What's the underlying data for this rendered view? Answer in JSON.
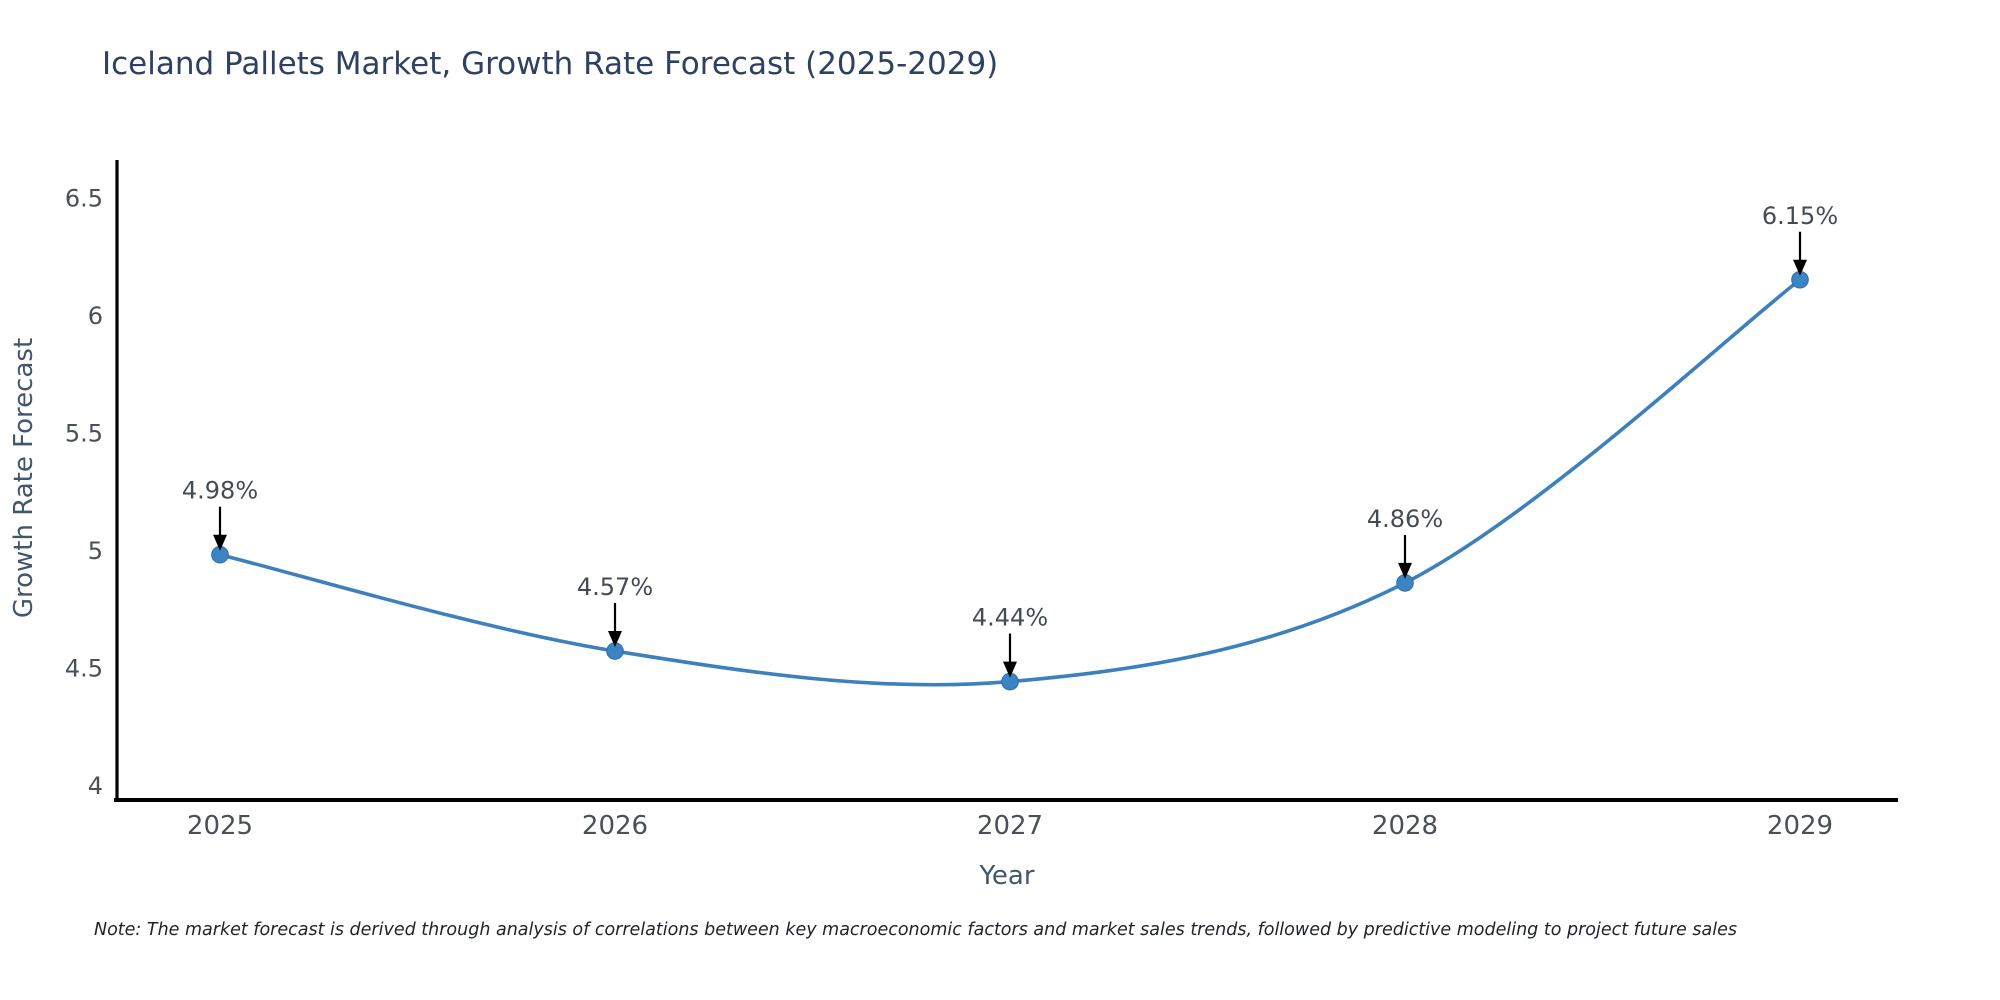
{
  "chart_data": {
    "type": "line",
    "title": "Iceland Pallets Market, Growth Rate Forecast (2025-2029)",
    "xlabel": "Year",
    "ylabel": "Growth Rate Forecast",
    "categories": [
      "2025",
      "2026",
      "2027",
      "2028",
      "2029"
    ],
    "series": [
      {
        "name": "Growth Rate Forecast",
        "values": [
          4.98,
          4.57,
          4.44,
          4.86,
          6.15
        ]
      }
    ],
    "point_labels": [
      "4.98%",
      "4.57%",
      "4.44%",
      "4.86%",
      "6.15%"
    ],
    "y_ticks": [
      4,
      4.5,
      5,
      5.5,
      6,
      6.5
    ],
    "ylim": [
      3.94,
      6.66
    ],
    "grid": false,
    "legend_position": "none",
    "line_shape": "spline",
    "marker_style": "circle",
    "annotation_arrows": true,
    "colors": {
      "line": "#3d80bd",
      "marker": "#3c85c5",
      "marker_edge": "#2d6ba8",
      "axis": "#000000",
      "tick_label": "#4a5059",
      "axis_title": "#42576b",
      "title": "#2e4162",
      "annotation_text": "#444b55",
      "annotation_arrow": "#000000",
      "background": "#ffffff"
    }
  },
  "note": {
    "text": "Note: The market forecast is derived through analysis of correlations between key macroeconomic factors and market sales trends, followed by predictive modeling to project future sales"
  }
}
